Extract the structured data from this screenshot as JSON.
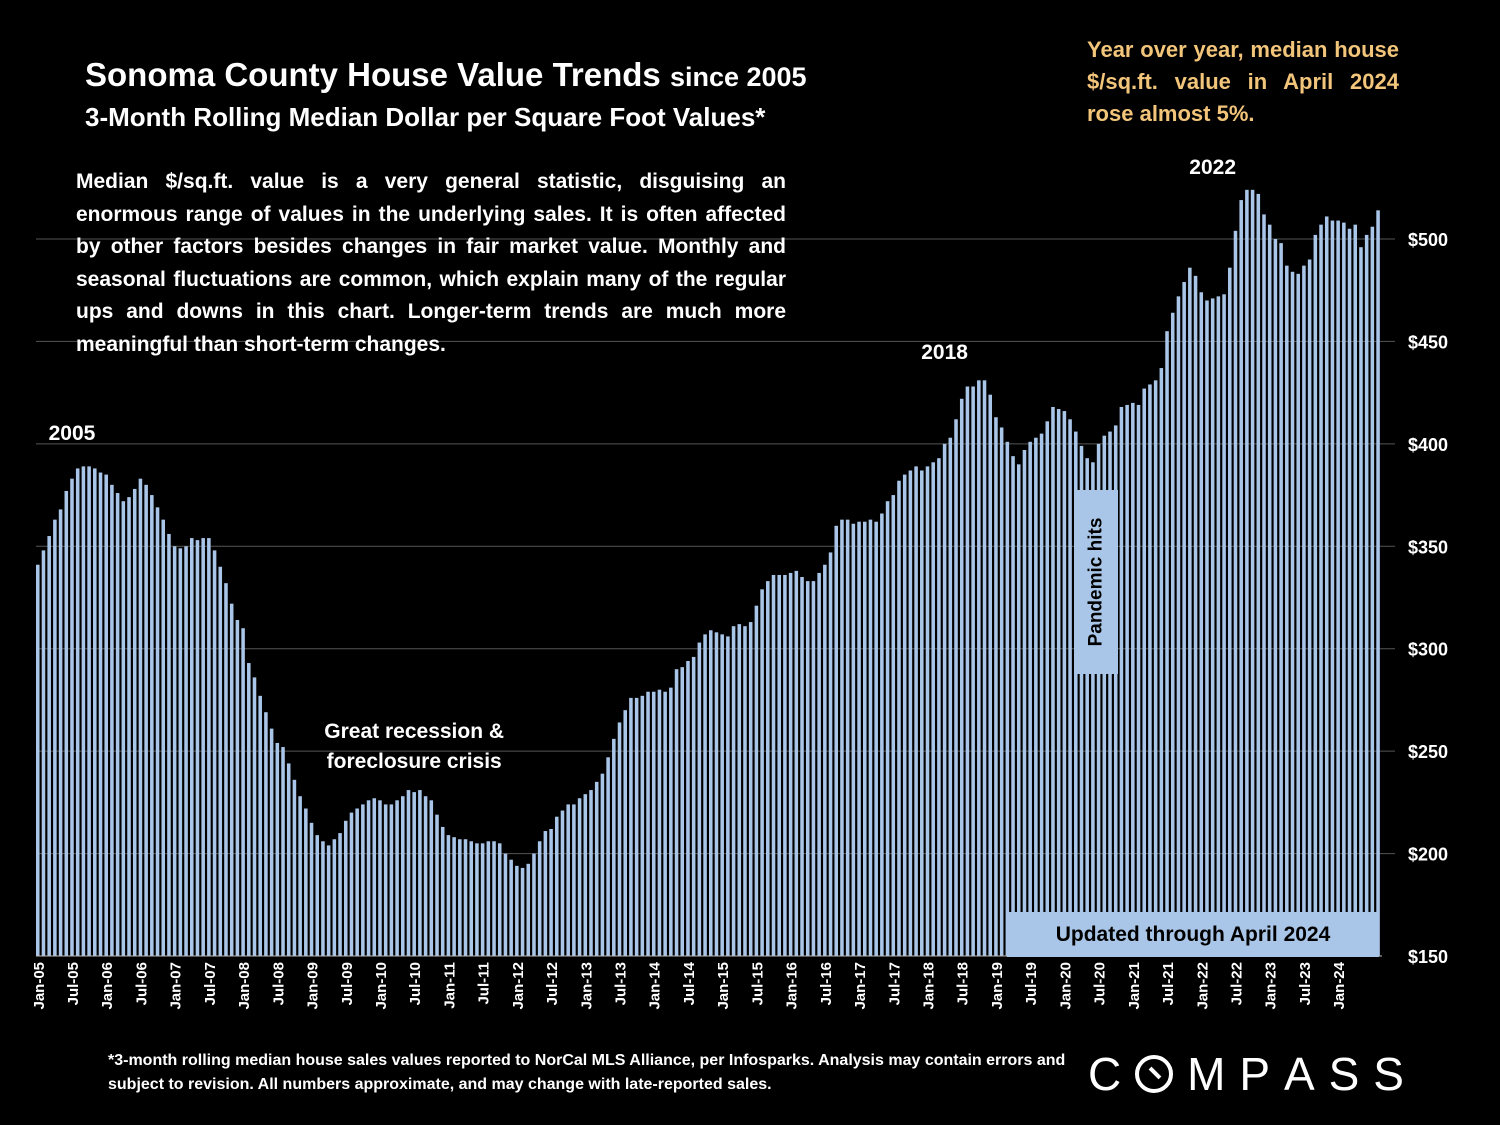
{
  "header": {
    "title_main": "Sonoma County House Value Trends",
    "title_since": "since 2005",
    "subtitle": "3-Month Rolling Median Dollar per Square Foot Values*"
  },
  "callout_yoy": "Year over year, median house $/sq.ft. value in April 2024 rose almost 5%.",
  "description": "Median $/sq.ft. value is a very general statistic, disguising an enormous range of values in the underlying sales. It is often affected by other factors besides changes in fair market value. Monthly and seasonal fluctuations are common, which explain many of the regular ups and downs in this chart. Longer-term trends are much more meaningful than short-term changes.",
  "pandemic_label": "Pandemic hits",
  "updated_label": "Updated through April 2024",
  "footnote": "*3-month rolling median house sales values reported to NorCal MLS Alliance, per Infosparks. Analysis may contain errors and subject to revision. All numbers approximate, and may change with late-reported sales.",
  "logo": {
    "letters": [
      "C",
      "M",
      "P",
      "A",
      "S",
      "S"
    ]
  },
  "colors": {
    "background": "#000000",
    "bar": "#a9c6e8",
    "accent_text": "#f2c57a",
    "grid": "#555555"
  },
  "chart_data": {
    "type": "bar",
    "title": "Sonoma County House Value Trends since 2005",
    "subtitle": "3-Month Rolling Median Dollar per Square Foot Values*",
    "xlabel": "",
    "ylabel": "",
    "ylim": [
      150,
      500
    ],
    "y_ticks": [
      "$150",
      "$200",
      "$250",
      "$300",
      "$350",
      "$400",
      "$450",
      "$500"
    ],
    "y_tick_values": [
      150,
      200,
      250,
      300,
      350,
      400,
      450,
      500
    ],
    "grid": true,
    "x_tick_labels": [
      "Jan-05",
      "Jul-05",
      "Jan-06",
      "Jul-06",
      "Jan-07",
      "Jul-07",
      "Jan-08",
      "Jul-08",
      "Jan-09",
      "Jul-09",
      "Jan-10",
      "Jul-10",
      "Jan-11",
      "Jul-11",
      "Jan-12",
      "Jul-12",
      "Jan-13",
      "Jul-13",
      "Jan-14",
      "Jul-14",
      "Jan-15",
      "Jul-15",
      "Jan-16",
      "Jul-16",
      "Jan-17",
      "Jul-17",
      "Jan-18",
      "Jul-18",
      "Jan-19",
      "Jul-19",
      "Jan-20",
      "Jul-20",
      "Jan-21",
      "Jul-21",
      "Jan-22",
      "Jul-22",
      "Jan-23",
      "Jul-23",
      "Jan-24"
    ],
    "x_start": "Jan-05",
    "x_end": "Apr-24",
    "values": [
      341,
      348,
      355,
      363,
      368,
      377,
      383,
      388,
      389,
      389,
      388,
      386,
      385,
      380,
      376,
      372,
      374,
      378,
      383,
      380,
      375,
      369,
      363,
      356,
      350,
      349,
      350,
      354,
      353,
      354,
      354,
      348,
      340,
      332,
      322,
      314,
      310,
      293,
      286,
      277,
      269,
      261,
      254,
      252,
      244,
      236,
      228,
      222,
      215,
      209,
      206,
      204,
      207,
      210,
      216,
      220,
      222,
      224,
      226,
      227,
      226,
      224,
      224,
      226,
      228,
      231,
      230,
      231,
      228,
      226,
      219,
      213,
      209,
      208,
      207,
      207,
      206,
      205,
      205,
      206,
      206,
      205,
      200,
      197,
      194,
      193,
      195,
      200,
      206,
      211,
      212,
      218,
      221,
      224,
      224,
      227,
      229,
      231,
      235,
      239,
      247,
      256,
      264,
      270,
      276,
      276,
      277,
      279,
      279,
      280,
      279,
      281,
      290,
      291,
      294,
      296,
      303,
      307,
      309,
      308,
      307,
      306,
      311,
      312,
      311,
      313,
      321,
      329,
      333,
      336,
      336,
      336,
      337,
      338,
      335,
      333,
      333,
      337,
      341,
      347,
      360,
      363,
      363,
      361,
      362,
      362,
      363,
      362,
      366,
      372,
      375,
      382,
      385,
      387,
      389,
      387,
      389,
      391,
      393,
      400,
      403,
      412,
      422,
      428,
      428,
      431,
      431,
      424,
      413,
      408,
      401,
      394,
      390,
      397,
      401,
      403,
      405,
      411,
      418,
      417,
      416,
      412,
      406,
      399,
      393,
      391,
      400,
      404,
      406,
      409,
      418,
      419,
      420,
      419,
      427,
      429,
      431,
      437,
      455,
      464,
      472,
      479,
      486,
      482,
      474,
      470,
      471,
      472,
      473,
      486,
      504,
      519,
      524,
      524,
      522,
      512,
      507,
      500,
      498,
      487,
      484,
      483,
      487,
      490,
      502,
      507,
      511,
      509,
      509,
      508,
      505,
      507,
      496,
      502,
      506,
      514
    ]
  },
  "annotations": [
    {
      "text": "2005",
      "at": "Jul-05"
    },
    {
      "text": "Great recession & foreclosure crisis",
      "lines": [
        "Great recession &",
        "foreclosure crisis"
      ],
      "at": "Jul-10"
    },
    {
      "text": "2018",
      "at": "Apr-18"
    },
    {
      "text": "2022",
      "at": "Mar-22"
    }
  ]
}
